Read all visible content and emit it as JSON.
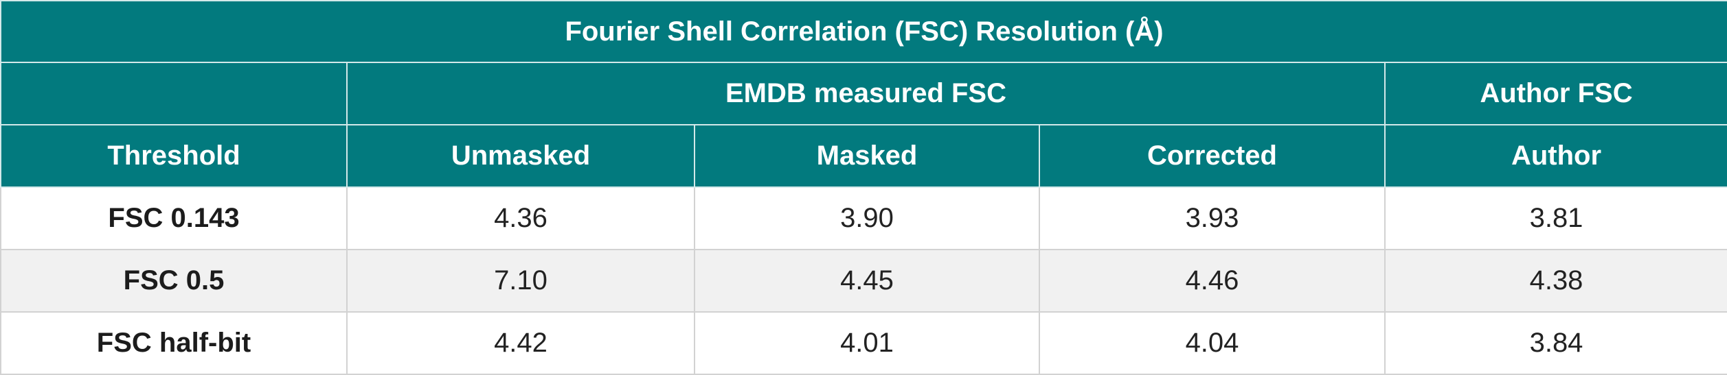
{
  "table": {
    "title": "Fourier Shell Correlation (FSC) Resolution (Å)",
    "group_headers": {
      "blank": "",
      "emdb": "EMDB measured FSC",
      "author": "Author FSC"
    },
    "columns": [
      "Threshold",
      "Unmasked",
      "Masked",
      "Corrected",
      "Author"
    ],
    "rows": [
      {
        "threshold": "FSC 0.143",
        "unmasked": "4.36",
        "masked": "3.90",
        "corrected": "3.93",
        "author": "3.81"
      },
      {
        "threshold": "FSC 0.5",
        "unmasked": "7.10",
        "masked": "4.45",
        "corrected": "4.46",
        "author": "4.38"
      },
      {
        "threshold": "FSC half-bit",
        "unmasked": "4.42",
        "masked": "4.01",
        "corrected": "4.04",
        "author": "3.84"
      }
    ]
  }
}
